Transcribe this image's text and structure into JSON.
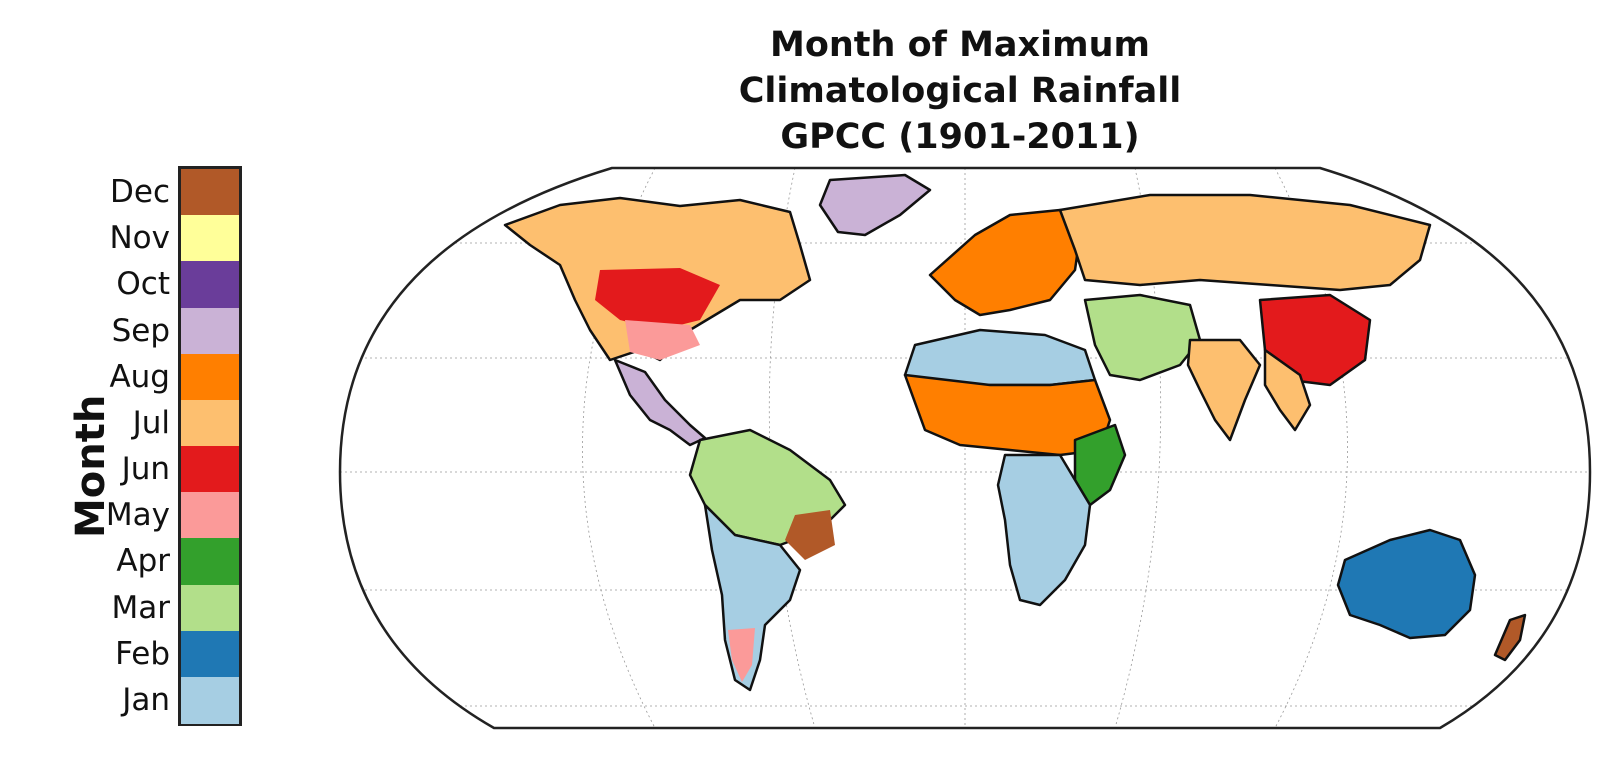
{
  "title": {
    "line1": "Month of Maximum",
    "line2": "Climatological Rainfall",
    "line3": "GPCC (1901-2011)"
  },
  "colorbar": {
    "label": "Month",
    "levels": [
      {
        "label": "Dec",
        "color": "#b15928"
      },
      {
        "label": "Nov",
        "color": "#ffff99"
      },
      {
        "label": "Oct",
        "color": "#6a3d9a"
      },
      {
        "label": "Sep",
        "color": "#cab2d6"
      },
      {
        "label": "Aug",
        "color": "#ff7f00"
      },
      {
        "label": "Jul",
        "color": "#fdbf6f"
      },
      {
        "label": "Jun",
        "color": "#e31a1c"
      },
      {
        "label": "May",
        "color": "#fb9a99"
      },
      {
        "label": "Apr",
        "color": "#33a02c"
      },
      {
        "label": "Mar",
        "color": "#b2df8a"
      },
      {
        "label": "Feb",
        "color": "#1f78b4"
      },
      {
        "label": "Jan",
        "color": "#a6cee3"
      }
    ]
  },
  "map": {
    "projection": "Robinson",
    "regions": [
      {
        "name": "north-america-west",
        "month": "Jul"
      },
      {
        "name": "north-america-central",
        "month": "Jun"
      },
      {
        "name": "north-america-southeast",
        "month": "May"
      },
      {
        "name": "central-america",
        "month": "Sep"
      },
      {
        "name": "amazon",
        "month": "Mar"
      },
      {
        "name": "brazil-east",
        "month": "Dec"
      },
      {
        "name": "south-america-south",
        "month": "Jan"
      },
      {
        "name": "patagonia",
        "month": "May"
      },
      {
        "name": "sahel",
        "month": "Aug"
      },
      {
        "name": "north-africa",
        "month": "Jan"
      },
      {
        "name": "east-africa",
        "month": "Apr"
      },
      {
        "name": "southern-africa",
        "month": "Jan"
      },
      {
        "name": "europe",
        "month": "Aug"
      },
      {
        "name": "middle-east",
        "month": "Mar"
      },
      {
        "name": "siberia",
        "month": "Jul"
      },
      {
        "name": "china",
        "month": "Jun"
      },
      {
        "name": "india",
        "month": "Jul"
      },
      {
        "name": "australia",
        "month": "Feb"
      },
      {
        "name": "greenland",
        "month": "Sep"
      }
    ]
  }
}
